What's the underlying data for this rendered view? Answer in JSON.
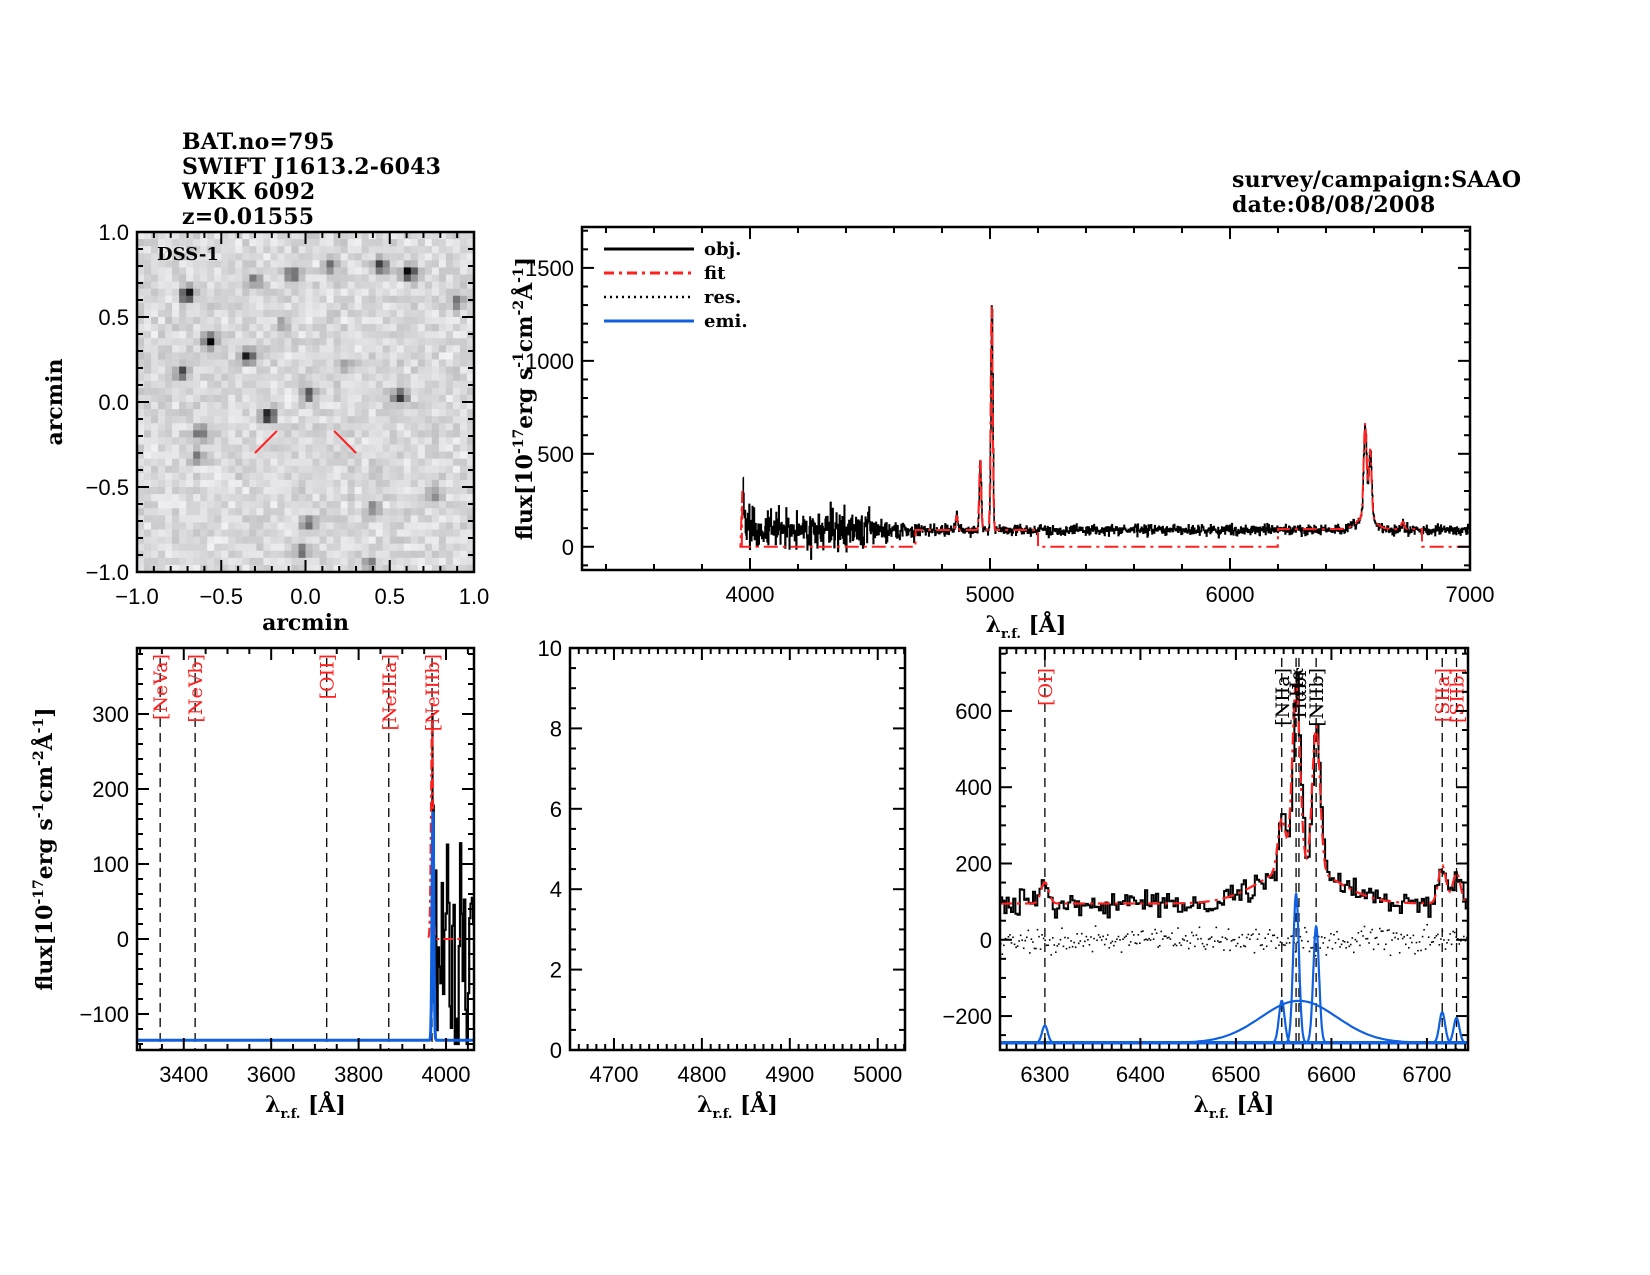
{
  "header": {
    "left": [
      "BAT.no=795",
      "SWIFT J1613.2-6043",
      "WKK 6092",
      "z=0.01555"
    ],
    "right": [
      "survey/campaign:SAAO",
      "date:08/08/2008"
    ]
  },
  "colors": {
    "obj": "#000000",
    "fit": "#ff2020",
    "res": "#000000",
    "emi": "#1060e0",
    "line_label_red": "#ff2020",
    "line_label_black": "#000000",
    "marker": "#ff2020"
  },
  "chart_data": [
    {
      "id": "dss-image",
      "type": "heatmap",
      "title": "",
      "image_label": "DSS-1",
      "xlabel": "arcmin",
      "ylabel": "arcmin",
      "xlim": [
        -1.0,
        1.0
      ],
      "ylim": [
        -1.0,
        1.0
      ],
      "xticks": [
        "-1.0",
        "-0.5",
        "0.0",
        "0.5",
        "1.0"
      ],
      "yticks": [
        "-1.0",
        "-0.5",
        "0.0",
        "0.5",
        "1.0"
      ],
      "xtick_values": [
        -1.0,
        -0.5,
        0.0,
        0.5,
        1.0
      ],
      "ytick_values": [
        -1.0,
        -0.5,
        0.0,
        0.5,
        1.0
      ],
      "colormap": "inverted grayscale",
      "sources": [
        {
          "x": -0.7,
          "y": 0.63,
          "v": 1.0
        },
        {
          "x": -0.57,
          "y": 0.36,
          "v": 0.9
        },
        {
          "x": -0.34,
          "y": 0.27,
          "v": 0.9
        },
        {
          "x": -0.73,
          "y": 0.18,
          "v": 0.7
        },
        {
          "x": -0.22,
          "y": -0.08,
          "v": 0.95
        },
        {
          "x": 0.02,
          "y": 0.05,
          "v": 0.7
        },
        {
          "x": 0.56,
          "y": 0.03,
          "v": 0.75
        },
        {
          "x": 0.62,
          "y": 0.76,
          "v": 1.0
        },
        {
          "x": 0.44,
          "y": 0.8,
          "v": 0.8
        },
        {
          "x": -0.08,
          "y": 0.75,
          "v": 0.7
        },
        {
          "x": 0.15,
          "y": 0.8,
          "v": 0.6
        },
        {
          "x": -0.3,
          "y": 0.72,
          "v": 0.5
        },
        {
          "x": 0.9,
          "y": 0.58,
          "v": 0.5
        },
        {
          "x": -0.62,
          "y": -0.18,
          "v": 0.55
        },
        {
          "x": -0.64,
          "y": -0.32,
          "v": 0.5
        },
        {
          "x": 0.02,
          "y": -0.72,
          "v": 0.5
        },
        {
          "x": -0.02,
          "y": -0.88,
          "v": 0.5
        },
        {
          "x": 0.38,
          "y": -0.95,
          "v": 0.45
        },
        {
          "x": 0.78,
          "y": -0.55,
          "v": 0.45
        },
        {
          "x": 0.4,
          "y": -0.62,
          "v": 0.45
        },
        {
          "x": -0.13,
          "y": 0.45,
          "v": 0.35
        },
        {
          "x": 0.25,
          "y": 0.22,
          "v": 0.35
        }
      ],
      "target_marker": {
        "description": "two red tick marks pointing at the target below center",
        "color": "#ff2020"
      }
    },
    {
      "id": "full-spectrum",
      "type": "line",
      "title": "",
      "xlabel": "λr.f. [Å]",
      "ylabel": "flux[10^-17 erg s^-1 cm^-2 Å^-1]",
      "xlim": [
        3300,
        7000
      ],
      "ylim": [
        -125,
        1720
      ],
      "xticks": [
        "4000",
        "5000",
        "6000",
        "7000"
      ],
      "xtick_values": [
        4000,
        5000,
        6000,
        7000
      ],
      "yticks": [
        "0",
        "500",
        "1000",
        "1500"
      ],
      "ytick_values": [
        0,
        500,
        1000,
        1500
      ],
      "legend": {
        "placement": "top-left",
        "entries": [
          {
            "label": "obj.",
            "style": "solid",
            "color": "#000000"
          },
          {
            "label": "fit",
            "style": "dash-dot",
            "color": "#ff2020"
          },
          {
            "label": "res.",
            "style": "dotted",
            "color": "#000000"
          },
          {
            "label": "emi.",
            "style": "solid",
            "color": "#1060e0"
          }
        ]
      },
      "series": [
        {
          "name": "obj.",
          "description": "observed spectrum, noisy continuum ~80-100 starting at 3970 A, strong [OIII] 5007 peak ~1330, [OIII] 4959 ~480, H-beta ~170, H-alpha+[NII] complex ~590",
          "continuum_level": 90,
          "x_start": 3970,
          "x_end": 7000,
          "peaks": [
            {
              "x": 3970,
              "y": 300
            },
            {
              "x": 4861,
              "y": 170
            },
            {
              "x": 4959,
              "y": 480
            },
            {
              "x": 5007,
              "y": 1330
            },
            {
              "x": 6563,
              "y": 590
            },
            {
              "x": 6584,
              "y": 460
            },
            {
              "x": 6720,
              "y": 130
            }
          ]
        },
        {
          "name": "fit",
          "description": "piecewise fit, zero outside fitted windows",
          "segments": [
            {
              "x": [
                3960,
                4690
              ],
              "y": 0
            },
            {
              "x": [
                4690,
                5200
              ],
              "y": 90
            },
            {
              "x": [
                5200,
                6200
              ],
              "y": 0
            },
            {
              "x": [
                6200,
                6800
              ],
              "y": 95
            },
            {
              "x": [
                6800,
                7000
              ],
              "y": 0
            }
          ]
        }
      ]
    },
    {
      "id": "zoom-oii-neiii",
      "type": "line",
      "title": "",
      "xlabel": "λr.f. [Å]",
      "ylabel": "flux[10^-17 erg s^-1 cm^-2 Å^-1]",
      "xlim": [
        3293,
        4064
      ],
      "ylim": [
        -148,
        388
      ],
      "xticks": [
        "3400",
        "3600",
        "3800",
        "4000"
      ],
      "xtick_values": [
        3400,
        3600,
        3800,
        4000
      ],
      "yticks": [
        "-100",
        "0",
        "100",
        "200",
        "300"
      ],
      "ytick_values": [
        -100,
        0,
        100,
        200,
        300
      ],
      "emission_lines": [
        {
          "label": "[NeVa]",
          "x": 3346,
          "color": "#ff2020"
        },
        {
          "label": "[NeVb]",
          "x": 3426,
          "color": "#ff2020"
        },
        {
          "label": "[OII]",
          "x": 3727,
          "color": "#ff2020"
        },
        {
          "label": "[NeIIIa]",
          "x": 3869,
          "color": "#ff2020"
        },
        {
          "label": "[NeIIIb]",
          "x": 3968,
          "color": "#ff2020"
        }
      ],
      "series": [
        {
          "name": "obj.",
          "x_start": 3968,
          "x_end": 4064,
          "range": [
            -140,
            300
          ]
        },
        {
          "name": "fit",
          "y_baseline": 0,
          "peak": {
            "x": 3968,
            "y": 290
          }
        },
        {
          "name": "emi.",
          "baseline": -135,
          "peak": {
            "x": 3970,
            "y": 170
          }
        }
      ]
    },
    {
      "id": "zoom-hbeta-oiii",
      "type": "line",
      "title": "",
      "xlabel": "λr.f. [Å]",
      "ylabel": "",
      "xlim": [
        4650,
        5031
      ],
      "ylim": [
        0,
        10
      ],
      "xticks": [
        "4700",
        "4800",
        "4900",
        "5000"
      ],
      "xtick_values": [
        4700,
        4800,
        4900,
        5000
      ],
      "yticks": [
        "0",
        "2",
        "4",
        "6",
        "8",
        "10"
      ],
      "ytick_values": [
        0,
        2,
        4,
        6,
        8,
        10
      ],
      "series": []
    },
    {
      "id": "zoom-halpha",
      "type": "line",
      "title": "",
      "xlabel": "λr.f. [Å]",
      "ylabel": "",
      "xlim": [
        6253,
        6743
      ],
      "ylim": [
        -289,
        765
      ],
      "xticks": [
        "6300",
        "6400",
        "6500",
        "6600",
        "6700"
      ],
      "xtick_values": [
        6300,
        6400,
        6500,
        6600,
        6700
      ],
      "yticks": [
        "-200",
        "0",
        "200",
        "400",
        "600"
      ],
      "ytick_values": [
        -200,
        0,
        200,
        400,
        600
      ],
      "emission_lines": [
        {
          "label": "[OI]",
          "x": 6300,
          "color": "#ff2020"
        },
        {
          "label": "[NIIa]",
          "x": 6548,
          "color": "#000000"
        },
        {
          "label": "Hα",
          "x": 6563,
          "color": "#000000"
        },
        {
          "label": "Hαbr",
          "x": 6566,
          "color": "#000000"
        },
        {
          "label": "[NIIb]",
          "x": 6584,
          "color": "#000000"
        },
        {
          "label": "[SIIa]",
          "x": 6716,
          "color": "#ff2020"
        },
        {
          "label": "[SIIb]",
          "x": 6731,
          "color": "#ff2020"
        }
      ],
      "series": [
        {
          "name": "obj.",
          "continuum": 95,
          "peaks": [
            {
              "x": 6300,
              "y": 140
            },
            {
              "x": 6548,
              "y": 340
            },
            {
              "x": 6563,
              "y": 600
            },
            {
              "x": 6584,
              "y": 500
            },
            {
              "x": 6716,
              "y": 180
            },
            {
              "x": 6731,
              "y": 150
            }
          ]
        },
        {
          "name": "fit",
          "continuum": 95
        },
        {
          "name": "res.",
          "center": 0,
          "scatter": 45
        },
        {
          "name": "emi.",
          "baseline": -270,
          "components": [
            {
              "line": "[OI]",
              "x": 6300,
              "amp": 45,
              "sigma": 3
            },
            {
              "line": "[NIIa]",
              "x": 6548,
              "amp": 110,
              "sigma": 3
            },
            {
              "line": "Hα",
              "x": 6563,
              "amp": 390,
              "sigma": 3
            },
            {
              "line": "Hαbr",
              "x": 6566,
              "amp": 110,
              "sigma": 40
            },
            {
              "line": "[NIIb]",
              "x": 6584,
              "amp": 305,
              "sigma": 3
            },
            {
              "line": "[SIIa]",
              "x": 6716,
              "amp": 80,
              "sigma": 3
            },
            {
              "line": "[SIIb]",
              "x": 6731,
              "amp": 65,
              "sigma": 3
            }
          ]
        }
      ]
    }
  ]
}
